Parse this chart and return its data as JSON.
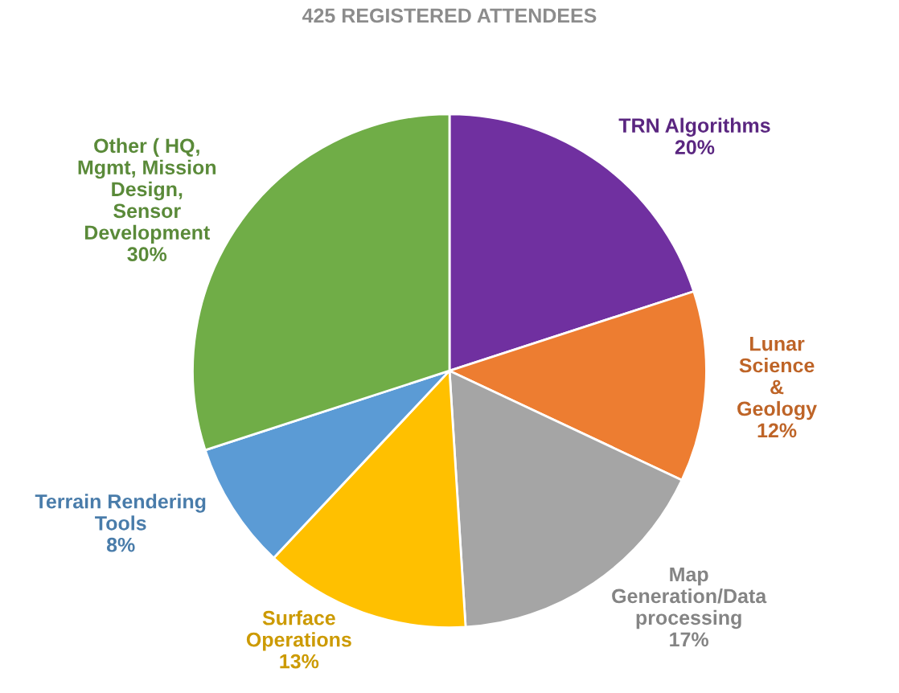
{
  "chart_data": {
    "type": "pie",
    "title": "425 REGISTERED ATTENDEES",
    "categories": [
      "TRN Algorithms",
      "Lunar\nScience\n&\nGeology",
      "Map\nGeneration/Data\nprocessing",
      "Surface\nOperations",
      "Terrain Rendering\nTools",
      "Other ( HQ,\nMgmt, Mission\nDesign,\nSensor\nDevelopment"
    ],
    "values": [
      20,
      12,
      17,
      13,
      8,
      30
    ],
    "colors": [
      "#7030a0",
      "#ed7d31",
      "#a5a5a5",
      "#ffc000",
      "#5b9bd5",
      "#70ad47"
    ],
    "value_labels": [
      "20%",
      "12%",
      "17%",
      "13%",
      "8%",
      "30%"
    ]
  }
}
